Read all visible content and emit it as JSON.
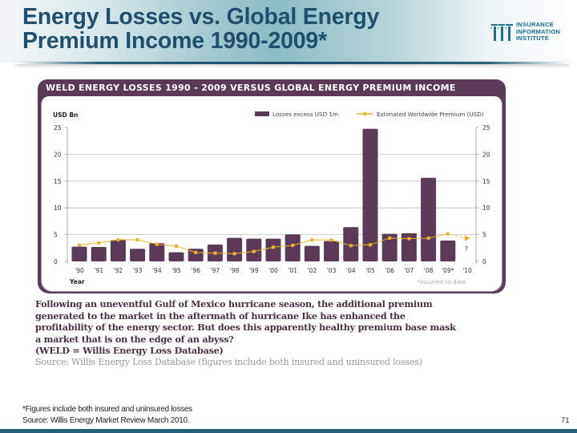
{
  "slide": {
    "title_line1": "Energy Losses vs. Global Energy",
    "title_line2": "Premium Income 1990-2009*",
    "logo": {
      "icon": "iii-logo-icon",
      "line1": "INSURANCE",
      "line2": "INFORMATION",
      "line3": "INSTITUTE",
      "color": "#1d6f8c"
    },
    "body": {
      "line1": "Following an uneventful Gulf of Mexico hurricane season, the additional premium",
      "line2": "generated to the market in the aftermath of hurricane Ike has enhanced the",
      "line3": "profitability of the energy sector.  But does this apparently healthy premium base mask",
      "line4": "a market that is on the edge of an abyss?",
      "line5": "(WELD = Willis Energy Loss Database)",
      "source": "Source:  Willis Energy Loss Database (figures include both insured and uninsured losses)"
    },
    "footnote1": "*Figures include both insured and uninsured losses",
    "footnote2": "Source: Willis Energy Market Review March 2010.",
    "page_number": "71"
  },
  "colors": {
    "title": "#1f4f6c",
    "bar": "#5b3a58",
    "premium_line": "#e8b430",
    "panel_frame": "#5b3a58"
  },
  "chart_data": {
    "type": "bar",
    "title": "WELD ENERGY LOSSES 1990 - 2009 VERSUS GLOBAL ENERGY PREMIUM INCOME",
    "ylabel": "USD Bn",
    "xlabel": "Year",
    "ylim": [
      0,
      25
    ],
    "yticks": [
      "0",
      "5",
      "10",
      "15",
      "20",
      "25"
    ],
    "right_yticks": [
      "0",
      "5",
      "10",
      "15",
      "20",
      "25"
    ],
    "grid": true,
    "legend_position": "top-right",
    "categories": [
      "'90",
      "'91",
      "'92",
      "'93",
      "'94",
      "'95",
      "'96",
      "'97",
      "'98",
      "'99",
      "'00",
      "'01",
      "'02",
      "'03",
      "'04",
      "'05",
      "'06",
      "'07",
      "'08",
      "'09*",
      "'10"
    ],
    "series": [
      {
        "name": "Losses excess USD 1m",
        "type": "bar",
        "values": [
          2.75,
          2.7,
          4.0,
          2.35,
          3.4,
          1.7,
          2.35,
          3.15,
          4.4,
          4.25,
          4.25,
          5.05,
          2.9,
          3.8,
          6.4,
          24.75,
          5.15,
          5.25,
          15.6,
          3.9,
          null
        ]
      },
      {
        "name": "Estimated Worldwide Premium (USD)",
        "type": "line",
        "values": [
          3.05,
          3.45,
          4.05,
          4.05,
          3.2,
          2.85,
          1.65,
          1.55,
          1.45,
          1.85,
          2.65,
          3.0,
          4.0,
          4.0,
          2.95,
          3.1,
          4.35,
          4.25,
          4.35,
          5.15,
          4.35
        ],
        "projected_from_index": 19
      }
    ],
    "annotations": [
      "?",
      "*incurred to date"
    ]
  }
}
